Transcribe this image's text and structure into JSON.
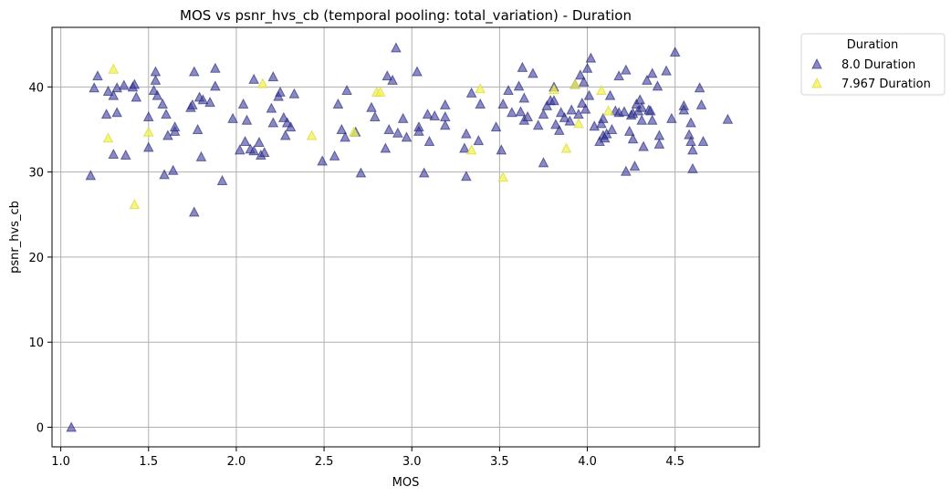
{
  "chart_data": {
    "type": "scatter",
    "title": "MOS vs psnr_hvs_cb (temporal pooling: total_variation) - Duration",
    "xlabel": "MOS",
    "ylabel": "psnr_hvs_cb",
    "xlim": [
      0.95,
      4.98
    ],
    "ylim": [
      -2.3,
      47.0
    ],
    "xticks": [
      1.0,
      1.5,
      2.0,
      2.5,
      3.0,
      3.5,
      4.0,
      4.5
    ],
    "xtick_labels": [
      "1.0",
      "1.5",
      "2.0",
      "2.5",
      "3.0",
      "3.5",
      "4.0",
      "4.5"
    ],
    "yticks": [
      0,
      10,
      20,
      30,
      40
    ],
    "ytick_labels": [
      "0",
      "10",
      "20",
      "30",
      "40"
    ],
    "grid": true,
    "marker": "triangle",
    "legend": {
      "title": "Duration",
      "placement": "outside-top-right"
    },
    "series": [
      {
        "name": "8.0 Duration",
        "color": "#3b3b9e",
        "points": [
          [
            1.06,
            0.0
          ],
          [
            1.17,
            29.6
          ],
          [
            1.19,
            39.9
          ],
          [
            1.21,
            41.3
          ],
          [
            1.26,
            36.8
          ],
          [
            1.27,
            39.5
          ],
          [
            1.3,
            39.0
          ],
          [
            1.3,
            32.1
          ],
          [
            1.32,
            37.0
          ],
          [
            1.32,
            39.9
          ],
          [
            1.36,
            40.2
          ],
          [
            1.37,
            32.0
          ],
          [
            1.41,
            40.0
          ],
          [
            1.42,
            40.3
          ],
          [
            1.43,
            38.8
          ],
          [
            1.5,
            32.9
          ],
          [
            1.5,
            36.5
          ],
          [
            1.53,
            39.6
          ],
          [
            1.54,
            41.8
          ],
          [
            1.54,
            40.8
          ],
          [
            1.55,
            39.0
          ],
          [
            1.58,
            38.0
          ],
          [
            1.59,
            29.7
          ],
          [
            1.6,
            36.8
          ],
          [
            1.61,
            34.3
          ],
          [
            1.64,
            30.2
          ],
          [
            1.65,
            34.8
          ],
          [
            1.65,
            35.3
          ],
          [
            1.74,
            37.6
          ],
          [
            1.75,
            37.9
          ],
          [
            1.76,
            25.3
          ],
          [
            1.76,
            41.8
          ],
          [
            1.78,
            35.0
          ],
          [
            1.79,
            38.8
          ],
          [
            1.8,
            31.8
          ],
          [
            1.81,
            38.5
          ],
          [
            1.85,
            38.2
          ],
          [
            1.88,
            42.2
          ],
          [
            1.88,
            40.1
          ],
          [
            1.92,
            29.0
          ],
          [
            1.98,
            36.3
          ],
          [
            2.02,
            32.6
          ],
          [
            2.04,
            38.0
          ],
          [
            2.05,
            33.6
          ],
          [
            2.06,
            36.1
          ],
          [
            2.08,
            32.7
          ],
          [
            2.1,
            40.9
          ],
          [
            2.1,
            32.5
          ],
          [
            2.13,
            33.5
          ],
          [
            2.14,
            32.0
          ],
          [
            2.16,
            32.3
          ],
          [
            2.2,
            37.5
          ],
          [
            2.21,
            35.8
          ],
          [
            2.21,
            41.2
          ],
          [
            2.24,
            38.9
          ],
          [
            2.25,
            39.4
          ],
          [
            2.27,
            36.4
          ],
          [
            2.28,
            34.3
          ],
          [
            2.29,
            35.8
          ],
          [
            2.31,
            35.3
          ],
          [
            2.33,
            39.2
          ],
          [
            2.49,
            31.3
          ],
          [
            2.56,
            31.9
          ],
          [
            2.58,
            38.0
          ],
          [
            2.6,
            35.0
          ],
          [
            2.62,
            34.1
          ],
          [
            2.63,
            39.6
          ],
          [
            2.68,
            34.7
          ],
          [
            2.71,
            29.9
          ],
          [
            2.77,
            37.6
          ],
          [
            2.79,
            36.5
          ],
          [
            2.85,
            32.8
          ],
          [
            2.86,
            41.3
          ],
          [
            2.87,
            35.0
          ],
          [
            2.89,
            40.8
          ],
          [
            2.91,
            44.6
          ],
          [
            2.92,
            34.6
          ],
          [
            2.95,
            36.3
          ],
          [
            2.97,
            34.1
          ],
          [
            3.03,
            41.8
          ],
          [
            3.04,
            35.3
          ],
          [
            3.04,
            34.8
          ],
          [
            3.07,
            29.9
          ],
          [
            3.09,
            36.8
          ],
          [
            3.1,
            33.6
          ],
          [
            3.13,
            36.6
          ],
          [
            3.19,
            37.9
          ],
          [
            3.19,
            36.5
          ],
          [
            3.19,
            35.5
          ],
          [
            3.3,
            32.8
          ],
          [
            3.31,
            34.5
          ],
          [
            3.31,
            29.5
          ],
          [
            3.34,
            39.3
          ],
          [
            3.38,
            33.7
          ],
          [
            3.39,
            38.0
          ],
          [
            3.48,
            35.3
          ],
          [
            3.51,
            32.6
          ],
          [
            3.52,
            38.0
          ],
          [
            3.55,
            39.6
          ],
          [
            3.57,
            37.0
          ],
          [
            3.61,
            40.1
          ],
          [
            3.62,
            37.1
          ],
          [
            3.63,
            42.3
          ],
          [
            3.64,
            38.7
          ],
          [
            3.64,
            36.1
          ],
          [
            3.66,
            36.5
          ],
          [
            3.69,
            41.6
          ],
          [
            3.72,
            35.5
          ],
          [
            3.75,
            31.1
          ],
          [
            3.75,
            36.8
          ],
          [
            3.77,
            37.8
          ],
          [
            3.79,
            38.4
          ],
          [
            3.81,
            40.0
          ],
          [
            3.81,
            38.4
          ],
          [
            3.82,
            35.6
          ],
          [
            3.84,
            34.9
          ],
          [
            3.85,
            37.0
          ],
          [
            3.87,
            36.4
          ],
          [
            3.9,
            36.0
          ],
          [
            3.91,
            37.3
          ],
          [
            3.93,
            40.3
          ],
          [
            3.95,
            36.8
          ],
          [
            3.96,
            41.4
          ],
          [
            3.97,
            38.1
          ],
          [
            3.98,
            40.6
          ],
          [
            3.99,
            37.4
          ],
          [
            4.0,
            42.2
          ],
          [
            4.01,
            39.0
          ],
          [
            4.02,
            43.4
          ],
          [
            4.04,
            35.4
          ],
          [
            4.07,
            33.6
          ],
          [
            4.08,
            35.7
          ],
          [
            4.09,
            36.3
          ],
          [
            4.09,
            34.3
          ],
          [
            4.1,
            34.0
          ],
          [
            4.11,
            34.5
          ],
          [
            4.13,
            39.0
          ],
          [
            4.14,
            35.0
          ],
          [
            4.16,
            37.2
          ],
          [
            4.18,
            41.3
          ],
          [
            4.18,
            37.0
          ],
          [
            4.21,
            37.1
          ],
          [
            4.22,
            42.0
          ],
          [
            4.22,
            30.1
          ],
          [
            4.24,
            34.8
          ],
          [
            4.25,
            36.7
          ],
          [
            4.26,
            36.9
          ],
          [
            4.26,
            33.9
          ],
          [
            4.27,
            30.7
          ],
          [
            4.28,
            38.0
          ],
          [
            4.29,
            37.2
          ],
          [
            4.3,
            38.5
          ],
          [
            4.31,
            37.6
          ],
          [
            4.31,
            36.1
          ],
          [
            4.32,
            33.0
          ],
          [
            4.34,
            40.8
          ],
          [
            4.35,
            37.3
          ],
          [
            4.36,
            37.2
          ],
          [
            4.37,
            41.6
          ],
          [
            4.37,
            36.1
          ],
          [
            4.4,
            40.1
          ],
          [
            4.41,
            34.3
          ],
          [
            4.41,
            33.3
          ],
          [
            4.45,
            41.9
          ],
          [
            4.48,
            36.3
          ],
          [
            4.5,
            44.1
          ],
          [
            4.55,
            37.8
          ],
          [
            4.55,
            37.3
          ],
          [
            4.58,
            34.4
          ],
          [
            4.59,
            33.6
          ],
          [
            4.59,
            35.8
          ],
          [
            4.6,
            30.4
          ],
          [
            4.6,
            32.6
          ],
          [
            4.64,
            39.9
          ],
          [
            4.65,
            37.9
          ],
          [
            4.66,
            33.6
          ],
          [
            4.8,
            36.2
          ]
        ]
      },
      {
        "name": "7.967 Duration",
        "color": "#f2f255",
        "points": [
          [
            1.27,
            34.0
          ],
          [
            1.3,
            42.1
          ],
          [
            1.42,
            26.2
          ],
          [
            1.5,
            34.7
          ],
          [
            2.15,
            40.4
          ],
          [
            2.43,
            34.3
          ],
          [
            2.67,
            34.7
          ],
          [
            2.8,
            39.4
          ],
          [
            2.82,
            39.4
          ],
          [
            3.34,
            32.6
          ],
          [
            3.39,
            39.8
          ],
          [
            3.52,
            29.4
          ],
          [
            3.81,
            39.7
          ],
          [
            3.88,
            32.8
          ],
          [
            3.93,
            40.3
          ],
          [
            3.95,
            35.7
          ],
          [
            4.08,
            39.6
          ],
          [
            4.12,
            37.2
          ]
        ]
      }
    ]
  }
}
